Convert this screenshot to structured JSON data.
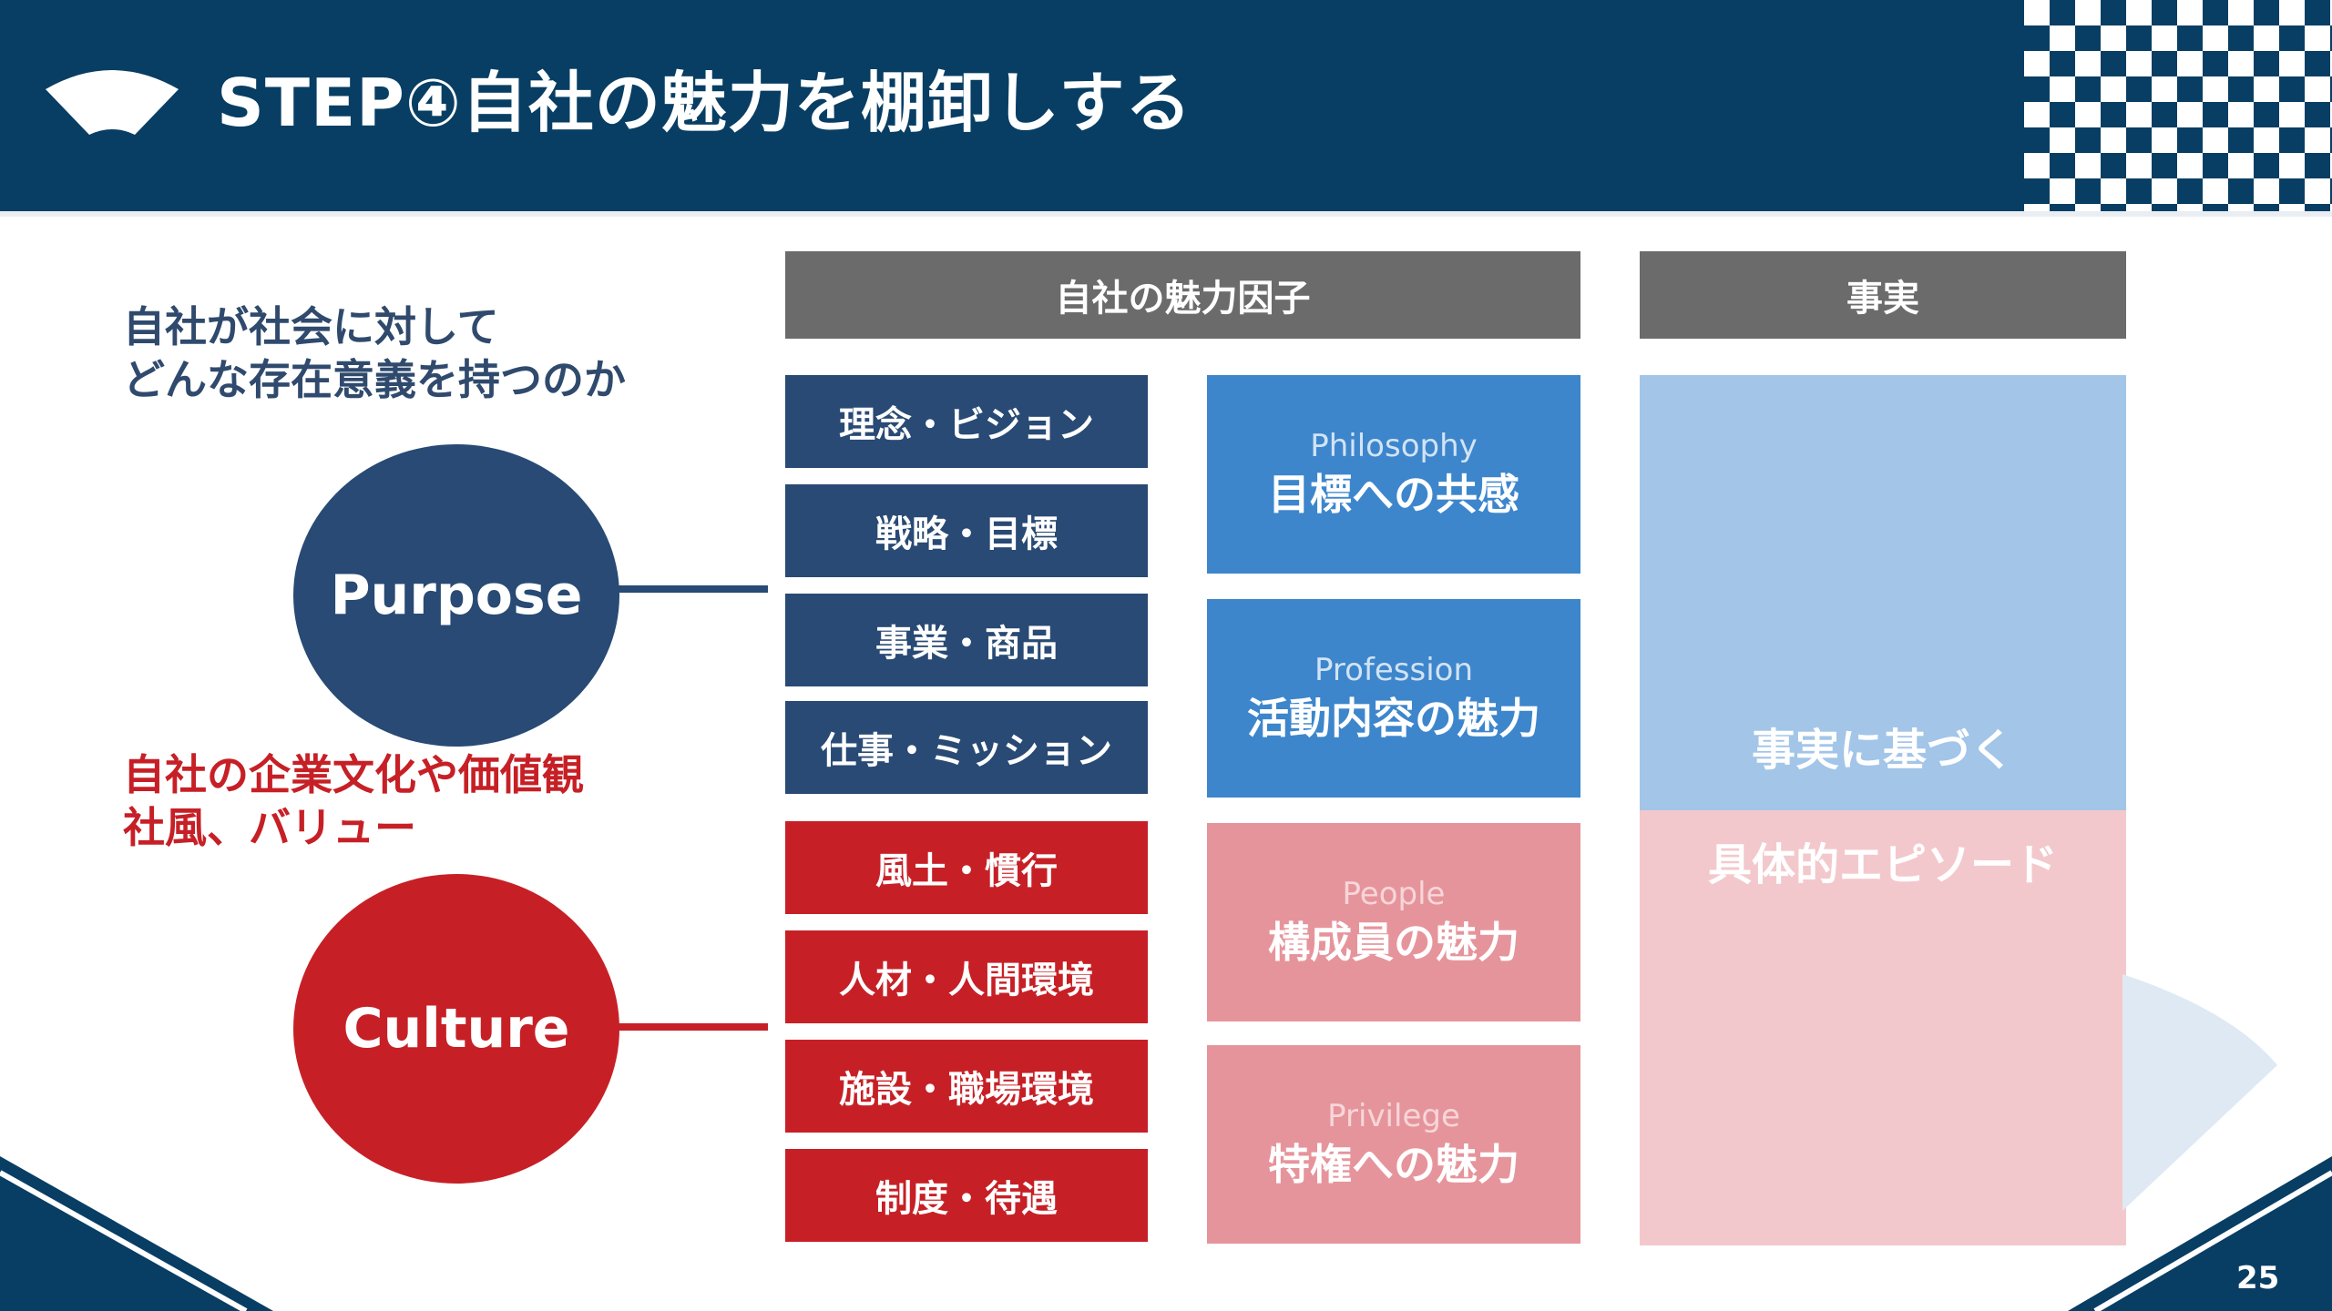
{
  "header": {
    "title": "STEP④自社の魅力を棚卸しする",
    "background_color": "#083e63"
  },
  "left": {
    "purpose_text": [
      "自社が社会に対して",
      "どんな存在意義を持つのか"
    ],
    "purpose_circle": "Purpose",
    "culture_text": [
      "自社の企業文化や価値観",
      "社風、バリュー"
    ],
    "culture_circle": "Culture"
  },
  "columns": {
    "factors_header": "自社の魅力因子",
    "facts_header": "事実"
  },
  "factors": {
    "purpose": [
      "理念・ビジョン",
      "戦略・目標",
      "事業・商品",
      "仕事・ミッション"
    ],
    "culture": [
      "風土・慣行",
      "人材・人間環境",
      "施設・職場環境",
      "制度・待遇"
    ]
  },
  "categories": [
    {
      "en": "Philosophy",
      "jp": "目標への共感"
    },
    {
      "en": "Profession",
      "jp": "活動内容の魅力"
    },
    {
      "en": "People",
      "jp": "構成員の魅力"
    },
    {
      "en": "Privilege",
      "jp": "特権への魅力"
    }
  ],
  "facts": {
    "line1": "事実に基づく",
    "line2": "具体的エピソード"
  },
  "colors": {
    "purpose": "#284a74",
    "culture": "#c62026",
    "category_blue": "#3d86cc",
    "category_pink": "#e6949b",
    "facts_blue": "#a2c5e8",
    "facts_pink": "#f3c8cc"
  },
  "page_number": "25"
}
